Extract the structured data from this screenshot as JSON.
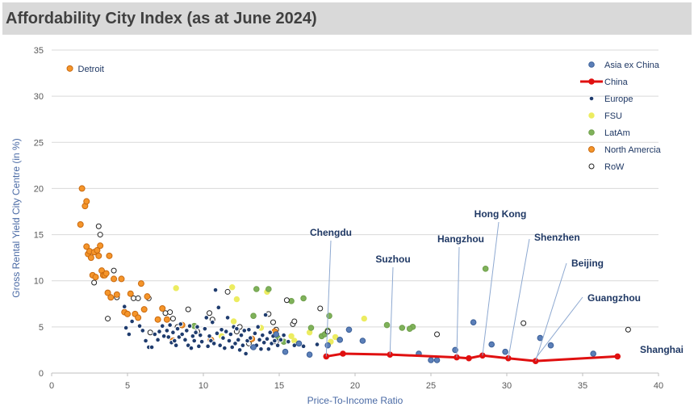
{
  "title": "Affordability City Index (as at June 2024)",
  "colors": {
    "asia": "#5b7fb8",
    "china": "#e01010",
    "europe": "#1f3c6e",
    "fsu": "#ecec60",
    "latam": "#7fb25a",
    "north_america": "#f5952a",
    "row": "#ffffff"
  },
  "chart_data": {
    "type": "scatter",
    "title": "Affordability City Index (as at June 2024)",
    "xlabel": "Price-To-Income Ratio",
    "ylabel": "Gross Rental Yield City Centre (in %)",
    "xlim": [
      0,
      40
    ],
    "ylim": [
      0,
      35
    ],
    "xticks": [
      0,
      5,
      10,
      15,
      20,
      25,
      30,
      35,
      40
    ],
    "yticks": [
      0,
      5,
      10,
      15,
      20,
      25,
      30,
      35
    ],
    "grid": true,
    "legend_position": "top-right",
    "annotations": [
      {
        "text": "Detroit",
        "x": 1.2,
        "y": 33.0
      },
      {
        "text": "Chengdu",
        "x": 18.1,
        "y": 1.8
      },
      {
        "text": "Suzhou",
        "x": 22.3,
        "y": 2.0
      },
      {
        "text": "Hangzhou",
        "x": 26.7,
        "y": 1.7
      },
      {
        "text": "Hong Kong",
        "x": 28.4,
        "y": 1.9
      },
      {
        "text": "Shenzhen",
        "x": 30.1,
        "y": 1.6
      },
      {
        "text": "Beijing",
        "x": 31.9,
        "y": 1.3
      },
      {
        "text": "Guangzhou",
        "x": 31.9,
        "y": 1.6
      },
      {
        "text": "Shanghai",
        "x": 37.3,
        "y": 1.8
      }
    ],
    "series": [
      {
        "name": "Asia ex China",
        "marker": "circle",
        "points": [
          [
            18.2,
            3.0
          ],
          [
            19.0,
            3.6
          ],
          [
            19.6,
            4.7
          ],
          [
            20.5,
            3.5
          ],
          [
            24.2,
            2.1
          ],
          [
            25.0,
            1.4
          ],
          [
            25.4,
            1.4
          ],
          [
            26.6,
            2.5
          ],
          [
            27.8,
            5.5
          ],
          [
            29.0,
            3.1
          ],
          [
            29.9,
            2.3
          ],
          [
            32.2,
            3.8
          ],
          [
            32.9,
            3.0
          ],
          [
            35.7,
            2.1
          ],
          [
            17.0,
            2.0
          ],
          [
            16.3,
            3.2
          ],
          [
            15.4,
            2.3
          ],
          [
            14.8,
            4.2
          ],
          [
            13.3,
            2.8
          ]
        ]
      },
      {
        "name": "China",
        "marker": "line",
        "points": [
          [
            18.1,
            1.8
          ],
          [
            19.2,
            2.1
          ],
          [
            22.3,
            2.0
          ],
          [
            26.7,
            1.7
          ],
          [
            27.5,
            1.6
          ],
          [
            28.4,
            1.9
          ],
          [
            30.1,
            1.6
          ],
          [
            31.9,
            1.3
          ],
          [
            37.3,
            1.8
          ]
        ]
      },
      {
        "name": "Europe",
        "marker": "dot",
        "points": [
          [
            4.8,
            7.2
          ],
          [
            4.9,
            4.9
          ],
          [
            5.1,
            4.2
          ],
          [
            5.3,
            5.6
          ],
          [
            5.8,
            5.1
          ],
          [
            6.0,
            4.6
          ],
          [
            6.2,
            3.5
          ],
          [
            6.4,
            2.8
          ],
          [
            6.6,
            2.8
          ],
          [
            6.8,
            4.2
          ],
          [
            7.0,
            3.6
          ],
          [
            7.1,
            4.5
          ],
          [
            7.3,
            5.1
          ],
          [
            7.4,
            4.0
          ],
          [
            7.6,
            4.6
          ],
          [
            7.7,
            3.9
          ],
          [
            7.8,
            5.2
          ],
          [
            7.9,
            3.3
          ],
          [
            8.0,
            4.4
          ],
          [
            8.1,
            3.5
          ],
          [
            8.2,
            3.0
          ],
          [
            8.3,
            4.8
          ],
          [
            8.4,
            3.9
          ],
          [
            8.5,
            5.3
          ],
          [
            8.6,
            4.2
          ],
          [
            8.8,
            3.6
          ],
          [
            8.9,
            4.6
          ],
          [
            9.0,
            3.0
          ],
          [
            9.1,
            5.1
          ],
          [
            9.2,
            2.7
          ],
          [
            9.3,
            4.0
          ],
          [
            9.4,
            3.5
          ],
          [
            9.5,
            4.4
          ],
          [
            9.6,
            5.0
          ],
          [
            9.7,
            2.9
          ],
          [
            9.8,
            4.1
          ],
          [
            9.9,
            3.4
          ],
          [
            10.1,
            4.8
          ],
          [
            10.2,
            6.0
          ],
          [
            10.3,
            2.9
          ],
          [
            10.4,
            4.0
          ],
          [
            10.5,
            3.5
          ],
          [
            10.6,
            5.5
          ],
          [
            10.7,
            3.2
          ],
          [
            10.8,
            9.0
          ],
          [
            10.9,
            4.3
          ],
          [
            11.0,
            7.1
          ],
          [
            11.1,
            3.0
          ],
          [
            11.2,
            4.7
          ],
          [
            11.3,
            3.8
          ],
          [
            11.4,
            2.7
          ],
          [
            11.5,
            4.5
          ],
          [
            11.6,
            6.0
          ],
          [
            11.7,
            3.5
          ],
          [
            11.8,
            4.2
          ],
          [
            11.9,
            2.8
          ],
          [
            12.0,
            5.0
          ],
          [
            12.1,
            3.2
          ],
          [
            12.2,
            4.8
          ],
          [
            12.3,
            3.6
          ],
          [
            12.4,
            2.5
          ],
          [
            12.5,
            4.1
          ],
          [
            12.6,
            3.0
          ],
          [
            12.7,
            4.6
          ],
          [
            12.8,
            2.1
          ],
          [
            12.9,
            3.5
          ],
          [
            13.0,
            4.7
          ],
          [
            13.1,
            3.8
          ],
          [
            13.2,
            2.8
          ],
          [
            13.4,
            4.3
          ],
          [
            13.5,
            3.0
          ],
          [
            13.6,
            5.0
          ],
          [
            13.7,
            3.6
          ],
          [
            13.8,
            2.6
          ],
          [
            13.9,
            4.1
          ],
          [
            14.0,
            3.3
          ],
          [
            14.1,
            6.3
          ],
          [
            14.2,
            3.7
          ],
          [
            14.3,
            2.6
          ],
          [
            14.4,
            4.4
          ],
          [
            14.5,
            3.2
          ],
          [
            14.6,
            4.0
          ],
          [
            14.7,
            3.5
          ],
          [
            14.9,
            3.0
          ],
          [
            15.1,
            3.6
          ],
          [
            15.3,
            4.1
          ],
          [
            15.6,
            3.4
          ],
          [
            16.0,
            3.0
          ],
          [
            16.6,
            2.9
          ],
          [
            17.5,
            3.1
          ]
        ]
      },
      {
        "name": "FSU",
        "marker": "circle",
        "points": [
          [
            8.2,
            9.2
          ],
          [
            11.9,
            9.3
          ],
          [
            12.2,
            8.0
          ],
          [
            12.0,
            5.6
          ],
          [
            13.8,
            4.9
          ],
          [
            14.2,
            8.8
          ],
          [
            15.8,
            4.0
          ],
          [
            16.0,
            3.5
          ],
          [
            17.0,
            4.4
          ],
          [
            18.4,
            3.4
          ],
          [
            18.7,
            3.9
          ],
          [
            20.6,
            5.9
          ],
          [
            11.2,
            4.0
          ],
          [
            13.0,
            3.3
          ]
        ]
      },
      {
        "name": "LatAm",
        "marker": "circle",
        "points": [
          [
            9.4,
            5.1
          ],
          [
            13.3,
            6.2
          ],
          [
            13.5,
            9.1
          ],
          [
            14.3,
            9.1
          ],
          [
            15.8,
            7.8
          ],
          [
            16.6,
            8.1
          ],
          [
            17.1,
            4.9
          ],
          [
            17.8,
            4.0
          ],
          [
            18.0,
            4.2
          ],
          [
            18.2,
            4.6
          ],
          [
            18.3,
            6.2
          ],
          [
            22.1,
            5.2
          ],
          [
            23.1,
            4.9
          ],
          [
            23.8,
            5.0
          ],
          [
            23.6,
            4.8
          ],
          [
            28.6,
            11.3
          ],
          [
            14.9,
            3.8
          ],
          [
            15.3,
            3.4
          ]
        ]
      },
      {
        "name": "North Amercia",
        "marker": "circle",
        "points": [
          [
            1.2,
            33.0
          ],
          [
            1.9,
            16.1
          ],
          [
            2.0,
            20.0
          ],
          [
            2.2,
            18.1
          ],
          [
            2.3,
            18.6
          ],
          [
            2.3,
            13.7
          ],
          [
            2.4,
            12.9
          ],
          [
            2.5,
            13.2
          ],
          [
            2.6,
            12.5
          ],
          [
            2.7,
            10.6
          ],
          [
            2.8,
            13.1
          ],
          [
            2.9,
            10.4
          ],
          [
            3.0,
            13.3
          ],
          [
            3.1,
            12.7
          ],
          [
            3.2,
            13.8
          ],
          [
            3.3,
            11.1
          ],
          [
            3.4,
            10.6
          ],
          [
            3.5,
            10.6
          ],
          [
            3.6,
            10.8
          ],
          [
            3.7,
            8.7
          ],
          [
            3.8,
            12.7
          ],
          [
            3.9,
            8.2
          ],
          [
            4.1,
            10.2
          ],
          [
            4.3,
            8.5
          ],
          [
            4.6,
            10.2
          ],
          [
            4.8,
            6.6
          ],
          [
            5.0,
            6.4
          ],
          [
            5.2,
            8.6
          ],
          [
            5.5,
            6.4
          ],
          [
            5.7,
            6.0
          ],
          [
            5.9,
            9.7
          ],
          [
            6.1,
            6.9
          ],
          [
            6.3,
            8.3
          ],
          [
            7.0,
            5.8
          ],
          [
            7.3,
            7.0
          ],
          [
            7.6,
            5.8
          ],
          [
            8.0,
            3.5
          ],
          [
            8.6,
            5.2
          ],
          [
            10.5,
            3.6
          ],
          [
            13.2,
            3.7
          ],
          [
            14.7,
            4.5
          ]
        ]
      },
      {
        "name": "RoW",
        "marker": "hollow-circle",
        "points": [
          [
            2.8,
            9.8
          ],
          [
            3.1,
            15.9
          ],
          [
            3.2,
            15.0
          ],
          [
            3.7,
            5.9
          ],
          [
            4.1,
            11.1
          ],
          [
            4.3,
            8.2
          ],
          [
            5.4,
            8.1
          ],
          [
            5.7,
            8.1
          ],
          [
            6.4,
            8.1
          ],
          [
            6.5,
            4.4
          ],
          [
            7.5,
            6.5
          ],
          [
            7.8,
            6.6
          ],
          [
            8.0,
            5.9
          ],
          [
            8.3,
            5.0
          ],
          [
            9.0,
            6.9
          ],
          [
            10.4,
            6.5
          ],
          [
            10.6,
            5.8
          ],
          [
            11.6,
            8.8
          ],
          [
            12.2,
            4.5
          ],
          [
            12.4,
            5.0
          ],
          [
            13.0,
            3.2
          ],
          [
            14.3,
            6.4
          ],
          [
            14.6,
            5.5
          ],
          [
            14.8,
            3.4
          ],
          [
            15.5,
            7.9
          ],
          [
            15.9,
            5.3
          ],
          [
            16.0,
            5.6
          ],
          [
            17.7,
            7.0
          ],
          [
            18.2,
            4.5
          ],
          [
            25.4,
            4.2
          ],
          [
            31.1,
            5.4
          ],
          [
            38.0,
            4.7
          ],
          [
            14.8,
            4.7
          ],
          [
            9.6,
            4.5
          ]
        ]
      }
    ]
  }
}
